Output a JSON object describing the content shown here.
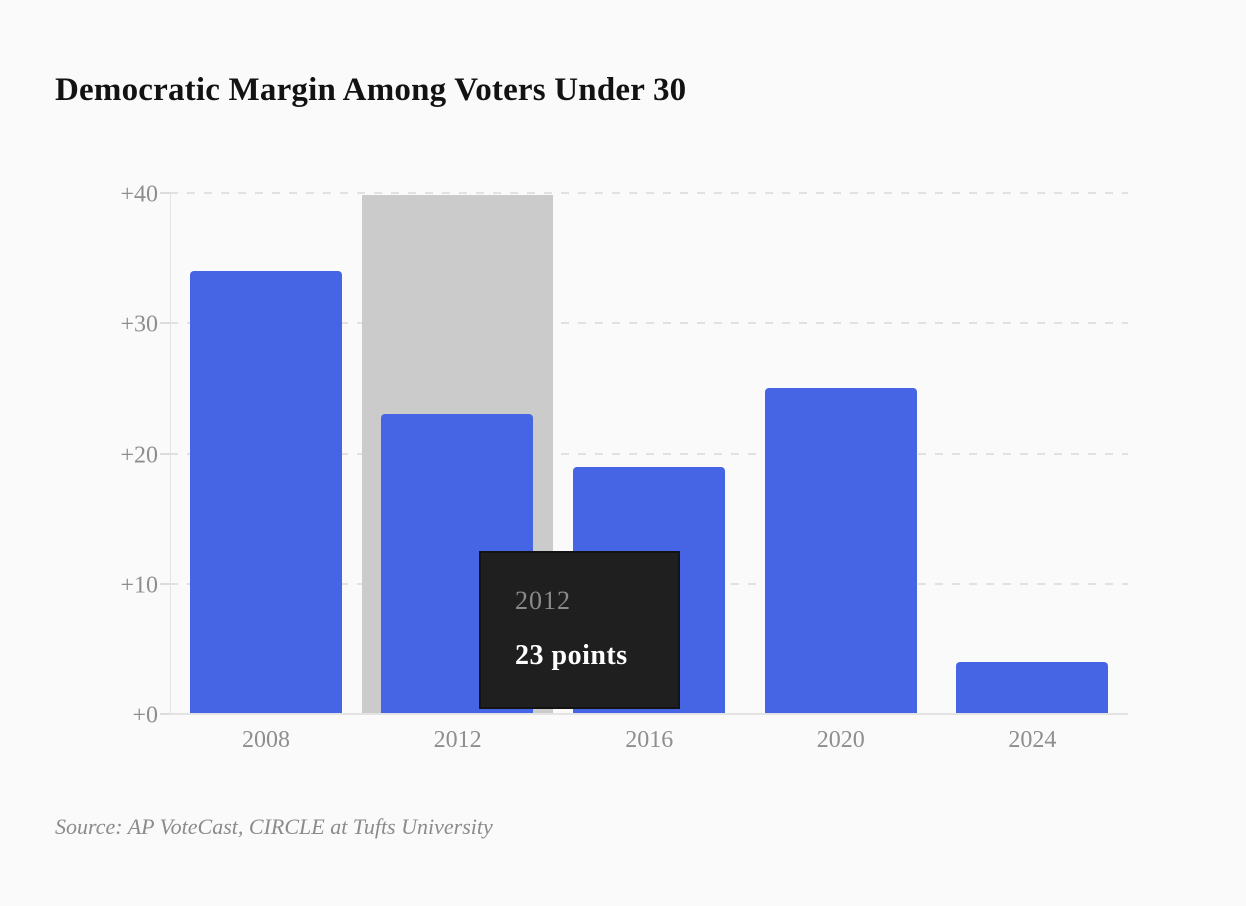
{
  "title": "Democratic Margin Among Voters Under 30",
  "source": "Source: AP VoteCast, CIRCLE at Tufts University",
  "tooltip": {
    "year": "2012",
    "value_label": "23 points"
  },
  "chart_data": {
    "type": "bar",
    "title": "Democratic Margin Among Voters Under 30",
    "categories": [
      "2008",
      "2012",
      "2016",
      "2020",
      "2024"
    ],
    "values": [
      34,
      23,
      19,
      25,
      4
    ],
    "xlabel": "",
    "ylabel": "",
    "ylim": [
      0,
      40
    ],
    "yticks": [
      0,
      10,
      20,
      30,
      40
    ],
    "ytick_labels": [
      "+0",
      "+10",
      "+20",
      "+30",
      "+40"
    ],
    "grid": "horizontal-dashed",
    "legend": "none",
    "highlighted_category": "2012",
    "highlighted_value_label": "23 points",
    "source": "Source: AP VoteCast, CIRCLE at Tufts University",
    "colors": {
      "bar": "#4565e4",
      "hover_band": "#cbcbcb",
      "background": "#fafafa",
      "gridline": "#e1e1e1",
      "axis_line": "#e3e3e3",
      "tick_label": "#8e8e8e",
      "title_text": "#121212",
      "tooltip_bg": "#1f1f1f",
      "tooltip_year_text": "#8a8a8a",
      "tooltip_value_text": "#ffffff",
      "source_text": "#8b8b8b"
    }
  }
}
